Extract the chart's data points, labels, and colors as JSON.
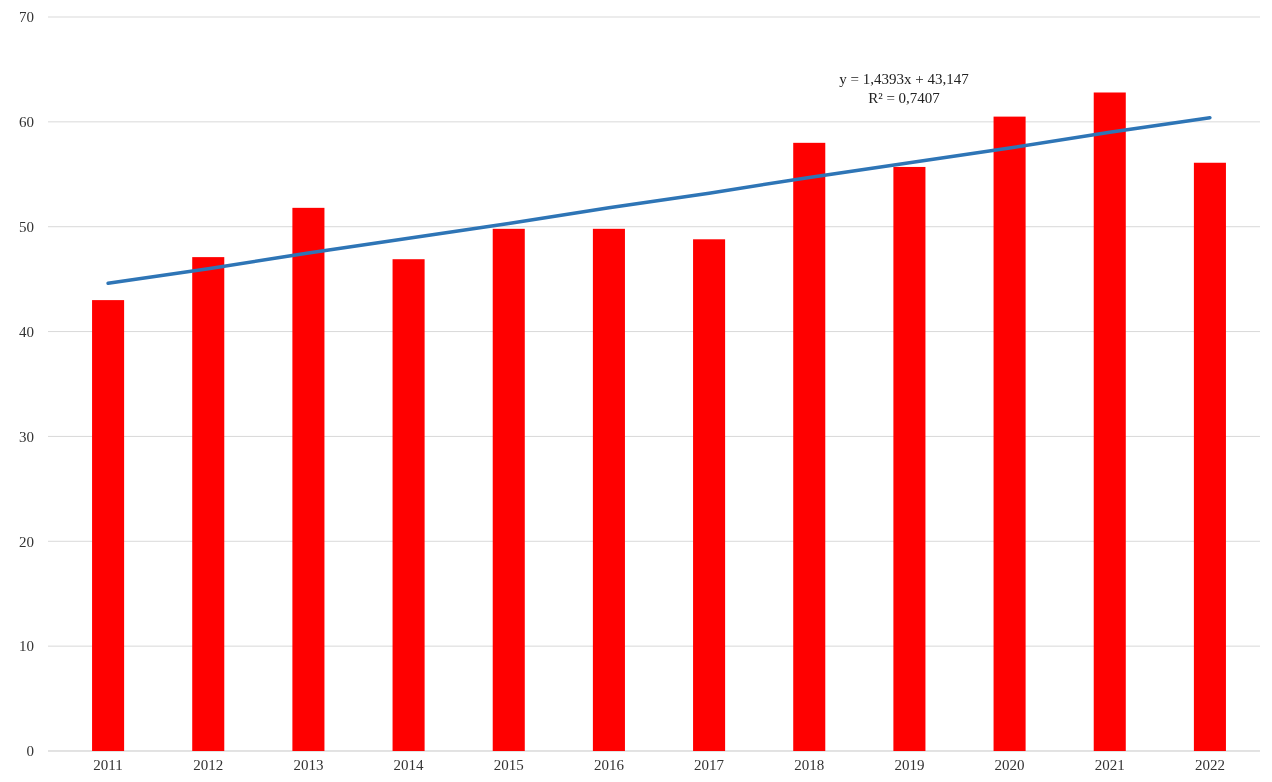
{
  "chart_data": {
    "type": "bar",
    "categories": [
      "2011",
      "2012",
      "2013",
      "2014",
      "2015",
      "2016",
      "2017",
      "2018",
      "2019",
      "2020",
      "2021",
      "2022"
    ],
    "series": [
      {
        "color": "#ff0000",
        "values": [
          43,
          47.1,
          51.8,
          46.9,
          49.8,
          49.8,
          48.8,
          58,
          55.7,
          60.5,
          62.8,
          56.1
        ]
      },
      {
        "type": "line",
        "color": "#2e75b6",
        "values": [
          44.6,
          46.0,
          47.5,
          48.9,
          50.3,
          51.8,
          53.2,
          54.7,
          56.1,
          57.5,
          59.0,
          60.4
        ]
      }
    ],
    "ylim": [
      0,
      70
    ],
    "yticks": [
      0,
      10,
      20,
      30,
      40,
      50,
      60,
      70
    ],
    "grid": "y",
    "annotations": [
      "y = 1,4393x + 43,147",
      "R² = 0,7407"
    ]
  }
}
